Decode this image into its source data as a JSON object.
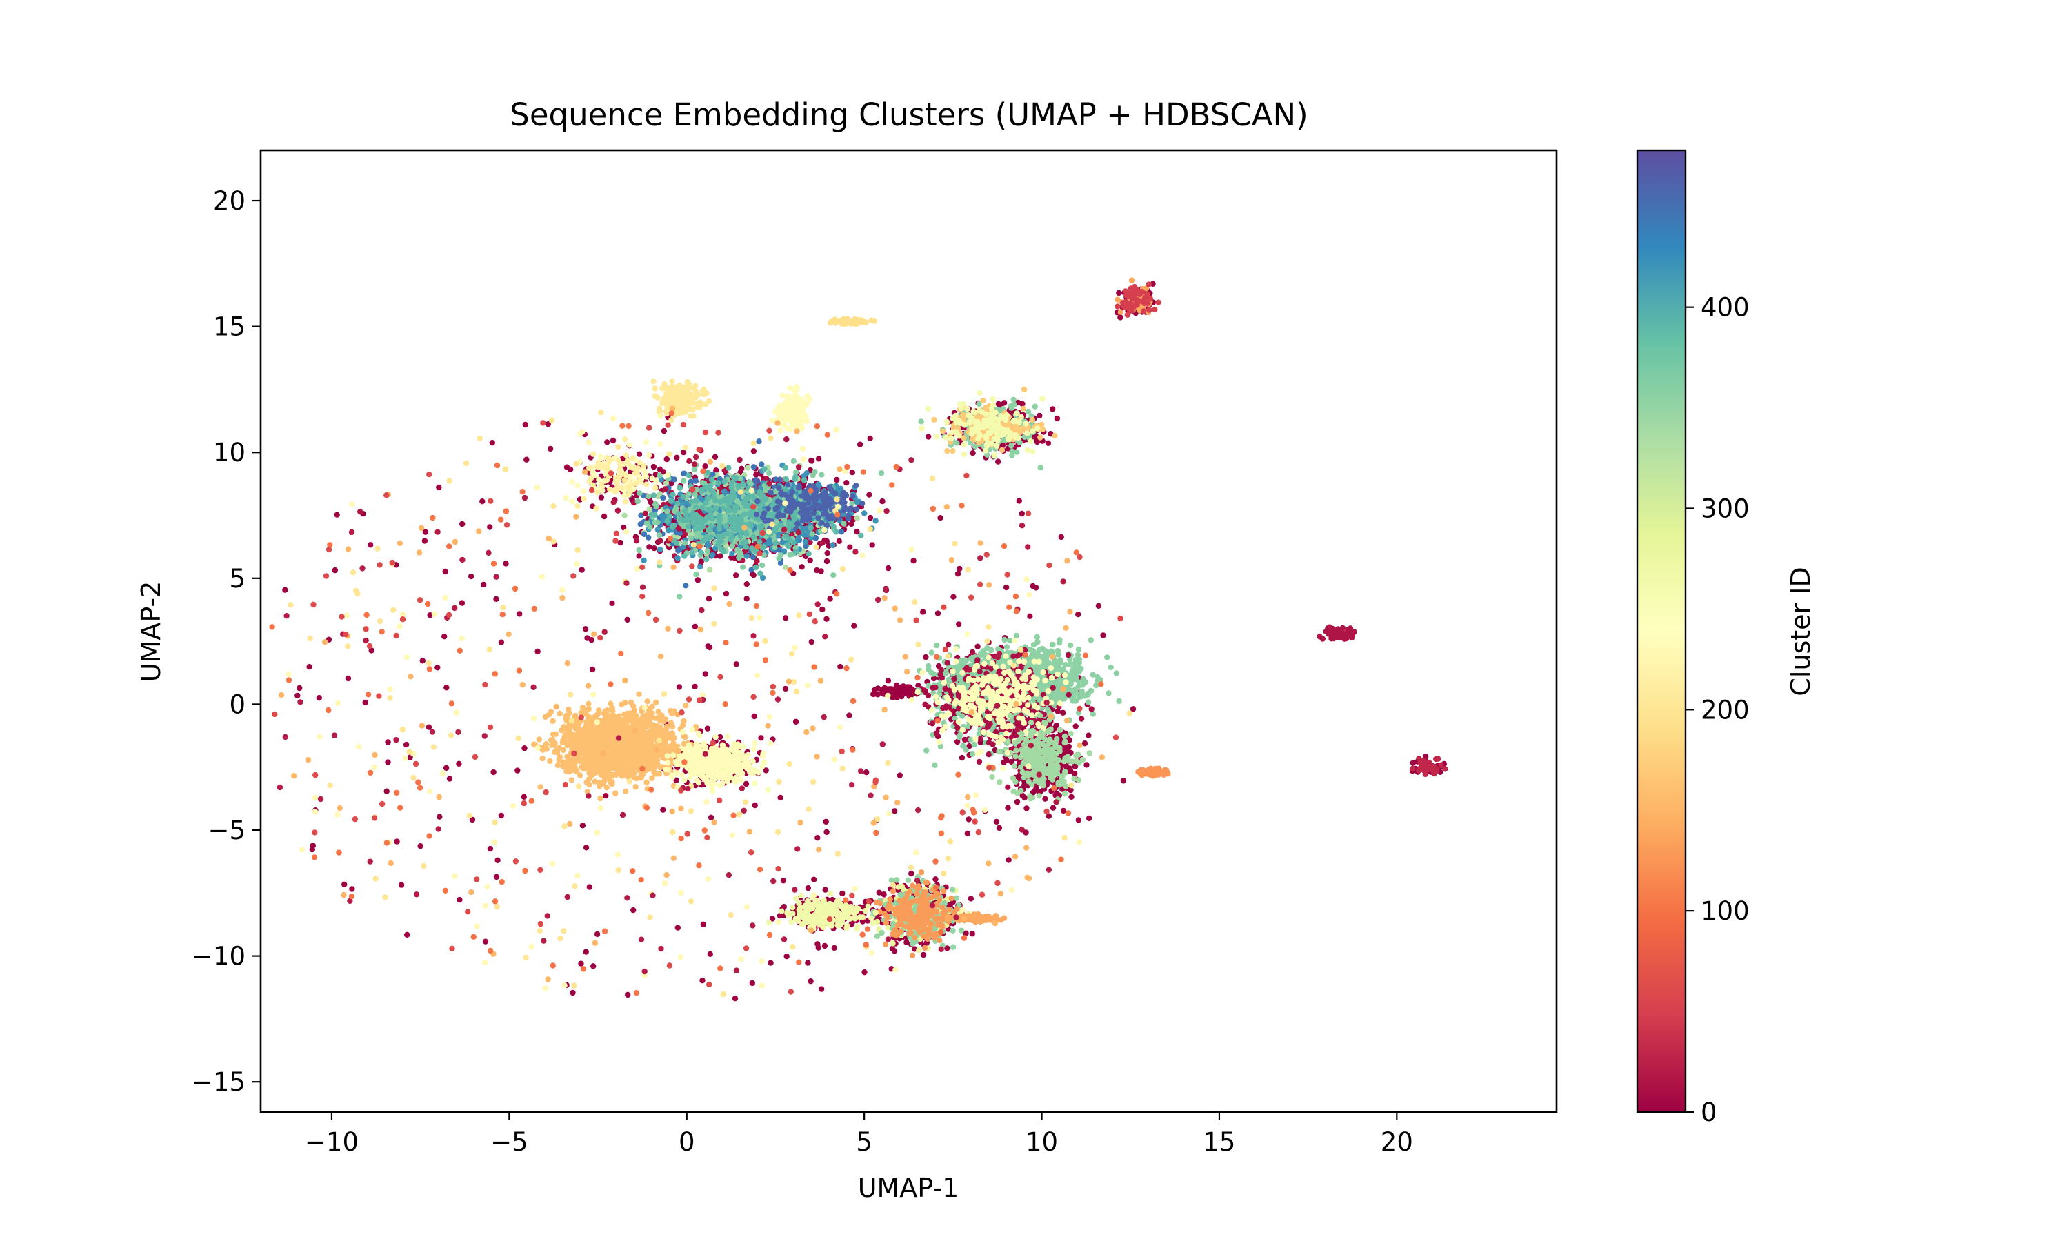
{
  "chart_data": {
    "type": "scatter",
    "title": "Sequence Embedding Clusters (UMAP + HDBSCAN)",
    "xlabel": "UMAP-1",
    "ylabel": "UMAP-2",
    "xlim": [
      -12,
      24.5
    ],
    "ylim": [
      -16.2,
      22
    ],
    "xticks": [
      -10,
      -5,
      0,
      5,
      10,
      15,
      20
    ],
    "yticks": [
      -15,
      -10,
      -5,
      0,
      5,
      10,
      15,
      20
    ],
    "grid": false,
    "colormap": "Spectral",
    "colorbar": {
      "label": "Cluster ID",
      "range": [
        0,
        478
      ],
      "ticks": [
        0,
        100,
        200,
        300,
        400
      ],
      "stops": [
        "#9e0142",
        "#d53e4f",
        "#f46d43",
        "#fdae61",
        "#fee08b",
        "#ffffbf",
        "#e6f598",
        "#abdda4",
        "#66c2a5",
        "#3288bd",
        "#5e4fa2"
      ]
    },
    "point_count_approx": 18000,
    "clusters": [
      {
        "center": [
          1.5,
          7.5
        ],
        "spread": [
          2.0,
          1.4
        ],
        "count": 2600,
        "ids": [
          0,
          0,
          0,
          15,
          330,
          360,
          390,
          420,
          445
        ]
      },
      {
        "center": [
          3.5,
          7.9
        ],
        "spread": [
          1.2,
          0.8
        ],
        "count": 500,
        "ids": [
          0,
          420,
          460
        ]
      },
      {
        "center": [
          -1.9,
          -1.6
        ],
        "spread": [
          1.4,
          1.1
        ],
        "count": 1800,
        "ids": [
          160
        ]
      },
      {
        "center": [
          0.8,
          -2.3
        ],
        "spread": [
          1.0,
          0.7
        ],
        "count": 600,
        "ids": [
          0,
          235,
          250
        ]
      },
      {
        "center": [
          9.3,
          1.0
        ],
        "spread": [
          1.6,
          1.0
        ],
        "count": 1500,
        "ids": [
          355
        ]
      },
      {
        "center": [
          8.7,
          0.2
        ],
        "spread": [
          1.5,
          1.6
        ],
        "count": 1200,
        "ids": [
          0,
          10,
          245,
          355
        ]
      },
      {
        "center": [
          10.0,
          -2.2
        ],
        "spread": [
          0.8,
          1.2
        ],
        "count": 700,
        "ids": [
          0,
          0,
          340
        ]
      },
      {
        "center": [
          8.6,
          11.0
        ],
        "spread": [
          1.2,
          0.8
        ],
        "count": 700,
        "ids": [
          0,
          0,
          355,
          260,
          170
        ]
      },
      {
        "center": [
          6.5,
          -8.3
        ],
        "spread": [
          0.9,
          1.0
        ],
        "count": 900,
        "ids": [
          0,
          0,
          350,
          280,
          130
        ]
      },
      {
        "center": [
          3.9,
          -8.3
        ],
        "spread": [
          0.9,
          0.5
        ],
        "count": 500,
        "ids": [
          265,
          0
        ]
      },
      {
        "center": [
          8.1,
          -8.5
        ],
        "spread": [
          0.6,
          0.12
        ],
        "count": 120,
        "ids": [
          140
        ]
      },
      {
        "center": [
          6.0,
          0.5
        ],
        "spread": [
          0.5,
          0.15
        ],
        "count": 150,
        "ids": [
          0
        ]
      },
      {
        "center": [
          -0.2,
          12.1
        ],
        "spread": [
          0.5,
          0.5
        ],
        "count": 250,
        "ids": [
          205
        ]
      },
      {
        "center": [
          3.0,
          11.6
        ],
        "spread": [
          0.4,
          0.6
        ],
        "count": 200,
        "ids": [
          235
        ]
      },
      {
        "center": [
          12.7,
          16.0
        ],
        "spread": [
          0.4,
          0.5
        ],
        "count": 150,
        "ids": [
          0,
          140,
          50
        ]
      },
      {
        "center": [
          18.4,
          2.8
        ],
        "spread": [
          0.4,
          0.2
        ],
        "count": 60,
        "ids": [
          15
        ]
      },
      {
        "center": [
          20.9,
          -2.5
        ],
        "spread": [
          0.4,
          0.25
        ],
        "count": 80,
        "ids": [
          0,
          30
        ]
      },
      {
        "center": [
          13.1,
          -2.7
        ],
        "spread": [
          0.35,
          0.12
        ],
        "count": 60,
        "ids": [
          125
        ]
      },
      {
        "center": [
          4.6,
          15.2
        ],
        "spread": [
          0.5,
          0.1
        ],
        "count": 60,
        "ids": [
          190
        ]
      },
      {
        "center": [
          -1.9,
          9.2
        ],
        "spread": [
          1.2,
          1.0
        ],
        "count": 200,
        "ids": [
          215,
          235,
          0
        ]
      },
      {
        "center": [
          0,
          0
        ],
        "spread": [
          8.5,
          8.5
        ],
        "count": 900,
        "ids": [
          0,
          0,
          20,
          60,
          100,
          150,
          200,
          230
        ]
      }
    ]
  }
}
